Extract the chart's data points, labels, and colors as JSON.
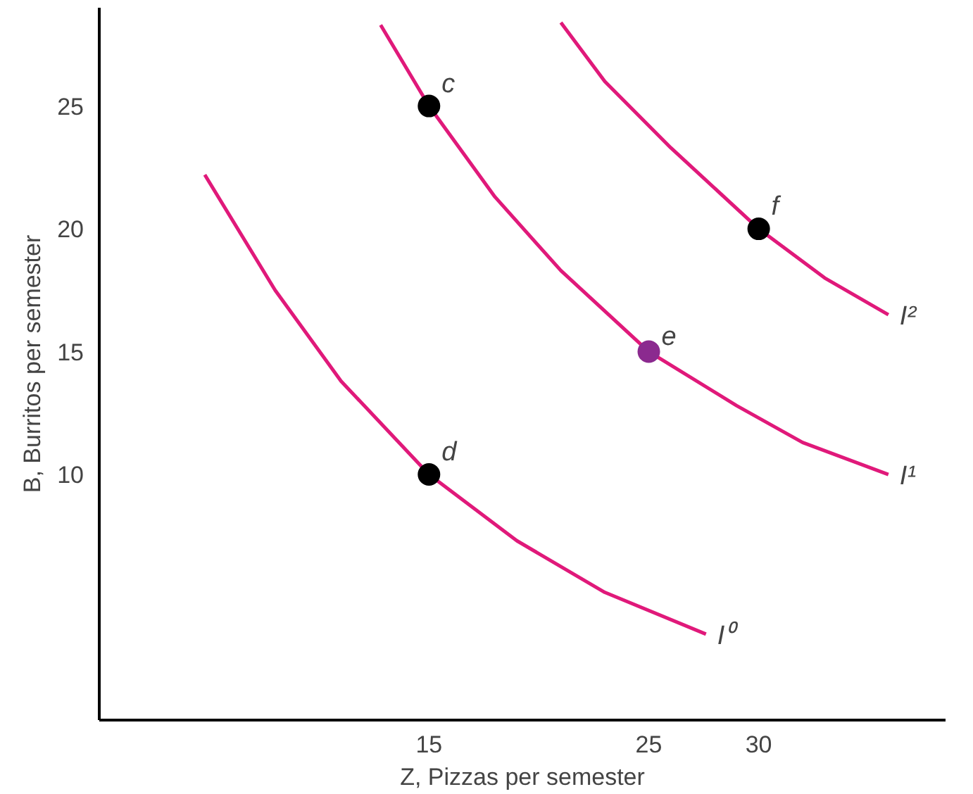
{
  "chart_data": {
    "type": "line",
    "xlabel": "Z, Pizzas per semester",
    "ylabel": "B, Burritos per semester",
    "xlim": [
      0,
      38.5
    ],
    "ylim": [
      0,
      29
    ],
    "xticks": [
      15,
      25,
      30
    ],
    "yticks": [
      10,
      15,
      20,
      25
    ],
    "marker": "none",
    "line_style": "solid",
    "series": [
      {
        "name": "I⁰",
        "color": "#e0197a",
        "x": [
          4.8,
          8,
          11,
          15,
          19,
          23,
          27.6
        ],
        "values": [
          22.2,
          17.5,
          13.8,
          10,
          7.3,
          5.2,
          3.5
        ]
      },
      {
        "name": "I¹",
        "color": "#e0197a",
        "x": [
          12.8,
          15,
          18,
          21,
          25,
          29,
          32,
          35.9
        ],
        "values": [
          28.3,
          25,
          21.3,
          18.3,
          15,
          12.8,
          11.3,
          10
        ]
      },
      {
        "name": "I²",
        "color": "#e0197a",
        "x": [
          21,
          23,
          26,
          30,
          33,
          35.9
        ],
        "values": [
          28.4,
          26,
          23.3,
          20,
          18,
          16.5
        ]
      },
      {
        "type": "scatter",
        "marker": "circle",
        "x": [
          15,
          15,
          25,
          30
        ],
        "values": [
          25,
          10,
          15,
          20
        ],
        "colors": [
          "#000000",
          "#000000",
          "#8b2a8f",
          "#000000"
        ]
      }
    ],
    "annotations": [
      {
        "text": "c",
        "x": 15,
        "y": 25
      },
      {
        "text": "d",
        "x": 15,
        "y": 10
      },
      {
        "text": "e",
        "x": 25,
        "y": 15
      },
      {
        "text": "f",
        "x": 30,
        "y": 20
      }
    ]
  }
}
